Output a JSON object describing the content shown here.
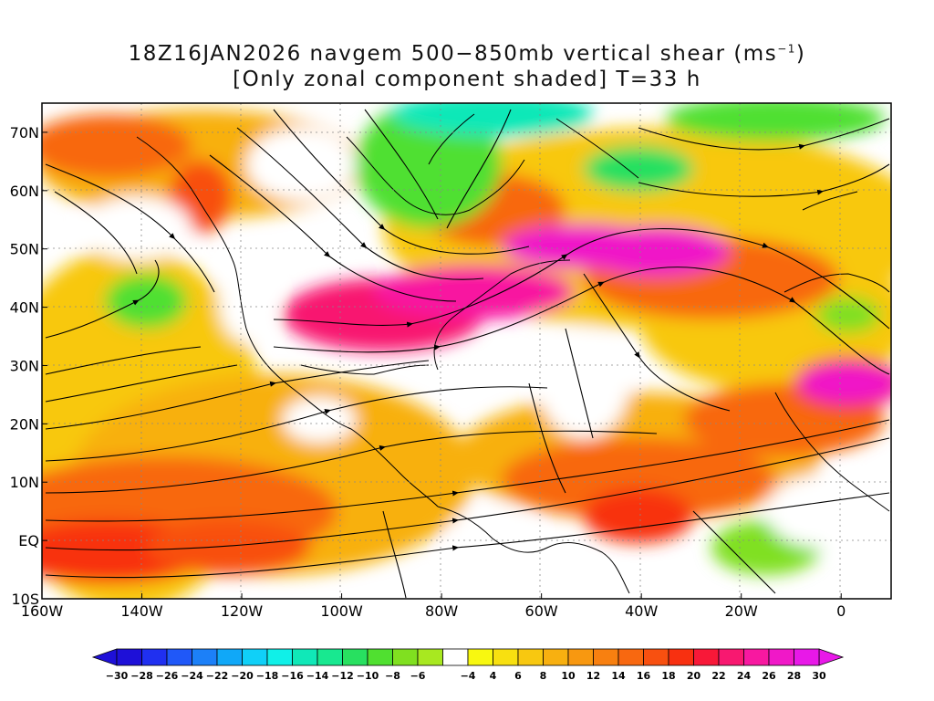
{
  "title": {
    "line1_prefix": "18Z16JAN2026 navgem 500−850mb vertical shear (ms",
    "line1_sup": "−1",
    "line1_suffix": ")",
    "line2": "[Only zonal component shaded] T=33 h"
  },
  "map": {
    "lon_range": [
      -160,
      10
    ],
    "lat_range": [
      -10,
      75
    ],
    "lon_ticks": [
      {
        "value": -160,
        "label": "160W"
      },
      {
        "value": -140,
        "label": "140W"
      },
      {
        "value": -120,
        "label": "120W"
      },
      {
        "value": -100,
        "label": "100W"
      },
      {
        "value": -80,
        "label": "80W"
      },
      {
        "value": -60,
        "label": "60W"
      },
      {
        "value": -40,
        "label": "40W"
      },
      {
        "value": -20,
        "label": "20W"
      },
      {
        "value": 0,
        "label": "0"
      }
    ],
    "lat_ticks": [
      {
        "value": 70,
        "label": "70N"
      },
      {
        "value": 60,
        "label": "60N"
      },
      {
        "value": 50,
        "label": "50N"
      },
      {
        "value": 40,
        "label": "40N"
      },
      {
        "value": 30,
        "label": "30N"
      },
      {
        "value": 20,
        "label": "20N"
      },
      {
        "value": 10,
        "label": "10N"
      },
      {
        "value": 0,
        "label": "EQ"
      },
      {
        "value": -10,
        "label": "10S"
      }
    ]
  },
  "colorbar": {
    "levels": [
      "−30",
      "−28",
      "−26",
      "−24",
      "−22",
      "−20",
      "−18",
      "−16",
      "−14",
      "−12",
      "−10",
      "−8",
      "−6",
      "−4",
      "4",
      "6",
      "8",
      "10",
      "12",
      "14",
      "16",
      "18",
      "20",
      "22",
      "24",
      "26",
      "28",
      "30"
    ],
    "colors": [
      "#1e10d8",
      "#2030f0",
      "#2058f8",
      "#1c80f8",
      "#10a8f8",
      "#10d0f8",
      "#10f0e8",
      "#10e8b8",
      "#18e890",
      "#28e060",
      "#50e030",
      "#80e020",
      "#a8e820",
      "#ffffff",
      "#f8f810",
      "#f8e010",
      "#f8c810",
      "#f8b010",
      "#f89810",
      "#f88010",
      "#f86810",
      "#f85010",
      "#f83010",
      "#f81838",
      "#f81870",
      "#f818a0",
      "#f018c8",
      "#e818e8"
    ]
  }
}
